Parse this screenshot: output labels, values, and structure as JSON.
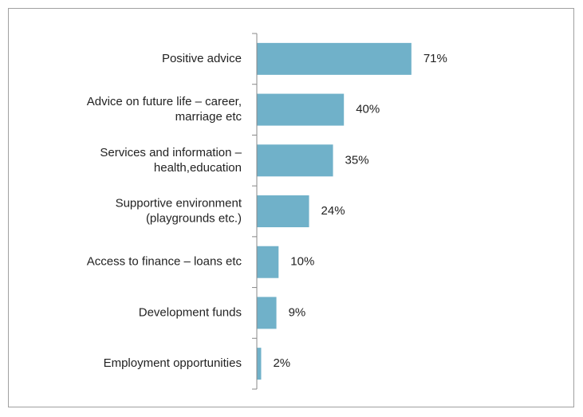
{
  "chart_data": {
    "type": "barh",
    "categories": [
      [
        "Positive advice"
      ],
      [
        "Advice on future life – career,",
        "marriage etc"
      ],
      [
        "Services and information –",
        "health,education"
      ],
      [
        "Supportive environment",
        "(playgrounds etc.)"
      ],
      [
        "Access to finance – loans etc"
      ],
      [
        "Development funds"
      ],
      [
        "Employment opportunities"
      ]
    ],
    "values": [
      71,
      40,
      35,
      24,
      10,
      9,
      2
    ],
    "value_labels": [
      "71%",
      "40%",
      "35%",
      "24%",
      "10%",
      "9%",
      "2%"
    ],
    "color": "#70b1c9",
    "xlim": [
      0,
      100
    ]
  }
}
